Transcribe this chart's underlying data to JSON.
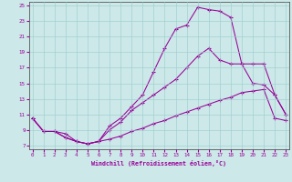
{
  "xlabel": "Windchill (Refroidissement éolien,°C)",
  "xlim": [
    0,
    23
  ],
  "ylim": [
    7,
    25
  ],
  "yticks": [
    7,
    9,
    11,
    13,
    15,
    17,
    19,
    21,
    23,
    25
  ],
  "xticks": [
    0,
    1,
    2,
    3,
    4,
    5,
    6,
    7,
    8,
    9,
    10,
    11,
    12,
    13,
    14,
    15,
    16,
    17,
    18,
    19,
    20,
    21,
    22,
    23
  ],
  "bg_color": "#cce8e8",
  "grid_color": "#99cccc",
  "line_color": "#990099",
  "top_x": [
    0,
    1,
    2,
    3,
    4,
    5,
    6,
    7,
    8,
    9,
    10,
    11,
    12,
    13,
    14,
    15,
    16,
    17,
    18,
    19,
    20,
    21,
    22,
    23
  ],
  "top_y": [
    10.5,
    8.8,
    8.8,
    8.0,
    7.5,
    7.2,
    7.5,
    9.5,
    10.5,
    12.0,
    13.5,
    16.5,
    19.5,
    22.0,
    22.5,
    24.8,
    24.5,
    24.3,
    23.5,
    17.5,
    17.5,
    17.5,
    13.5,
    11.0
  ],
  "mid_x": [
    0,
    1,
    2,
    3,
    4,
    5,
    6,
    7,
    8,
    9,
    10,
    11,
    12,
    13,
    14,
    15,
    16,
    17,
    18,
    19,
    20,
    21,
    22,
    23
  ],
  "mid_y": [
    10.5,
    8.8,
    8.8,
    8.0,
    7.5,
    7.2,
    7.5,
    9.0,
    10.0,
    11.5,
    12.5,
    13.5,
    14.5,
    15.5,
    17.0,
    18.5,
    19.5,
    18.0,
    17.5,
    17.5,
    15.0,
    14.8,
    13.5,
    11.0
  ],
  "bot_x": [
    0,
    1,
    2,
    3,
    4,
    5,
    6,
    7,
    8,
    9,
    10,
    11,
    12,
    13,
    14,
    15,
    16,
    17,
    18,
    19,
    20,
    21,
    22,
    23
  ],
  "bot_y": [
    10.5,
    8.8,
    8.8,
    8.5,
    7.5,
    7.2,
    7.5,
    7.8,
    8.2,
    8.8,
    9.2,
    9.8,
    10.2,
    10.8,
    11.3,
    11.8,
    12.3,
    12.8,
    13.2,
    13.8,
    14.0,
    14.2,
    10.5,
    10.2
  ]
}
